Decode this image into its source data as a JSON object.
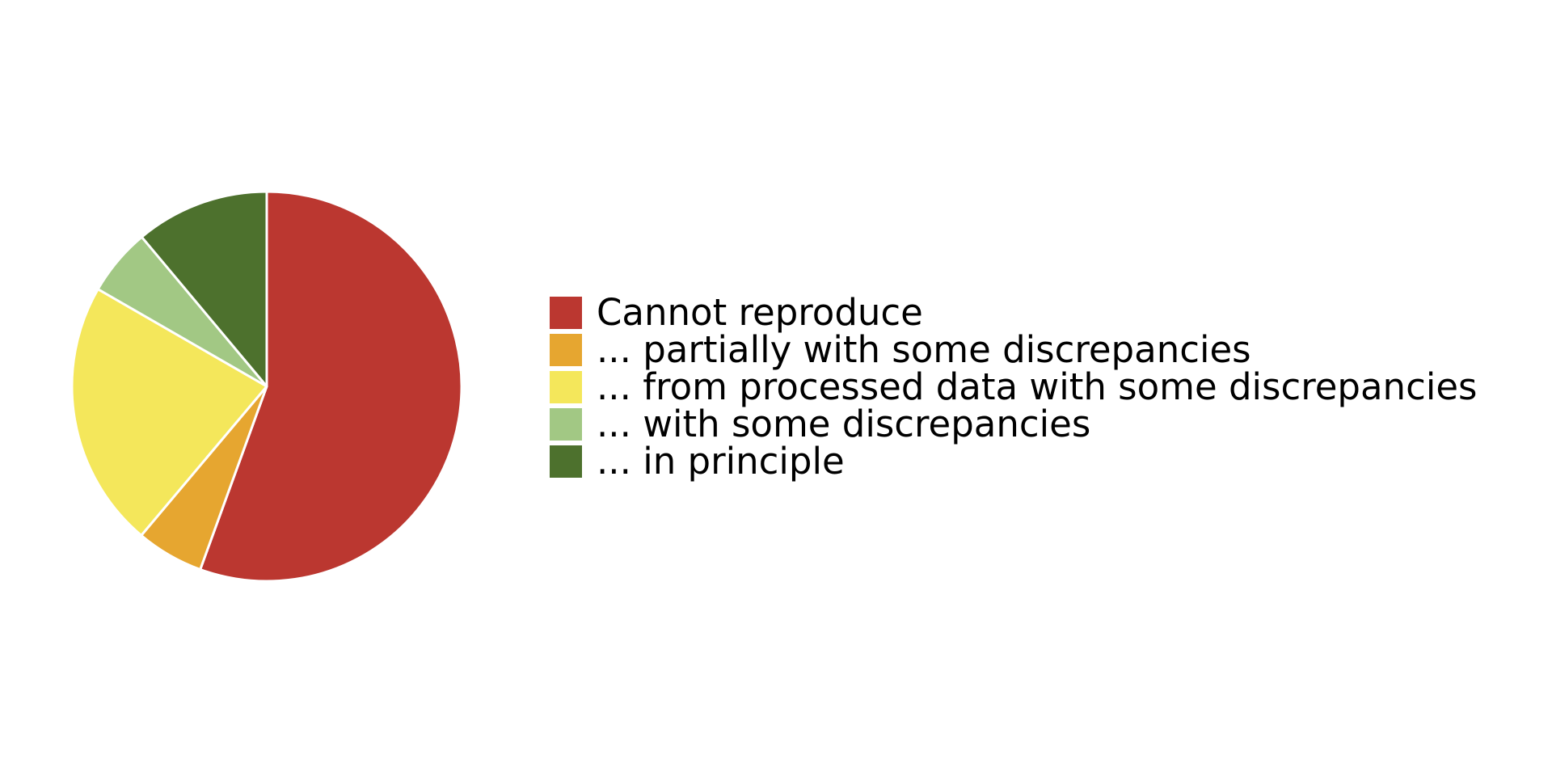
{
  "chart_data": {
    "type": "pie",
    "start_angle_deg": 90,
    "direction": "clockwise",
    "legend_position": "right",
    "slices": [
      {
        "label": "Cannot reproduce",
        "value": 55.6,
        "color": "#bb3730"
      },
      {
        "label": "... partially with some discrepancies",
        "value": 5.6,
        "color": "#e6a630"
      },
      {
        "label": "... from processed data with some discrepancies",
        "value": 22.2,
        "color": "#f4e75b"
      },
      {
        "label": "... with some discrepancies",
        "value": 5.6,
        "color": "#a2c884"
      },
      {
        "label": "... in principle",
        "value": 11.1,
        "color": "#4d712d"
      }
    ]
  }
}
